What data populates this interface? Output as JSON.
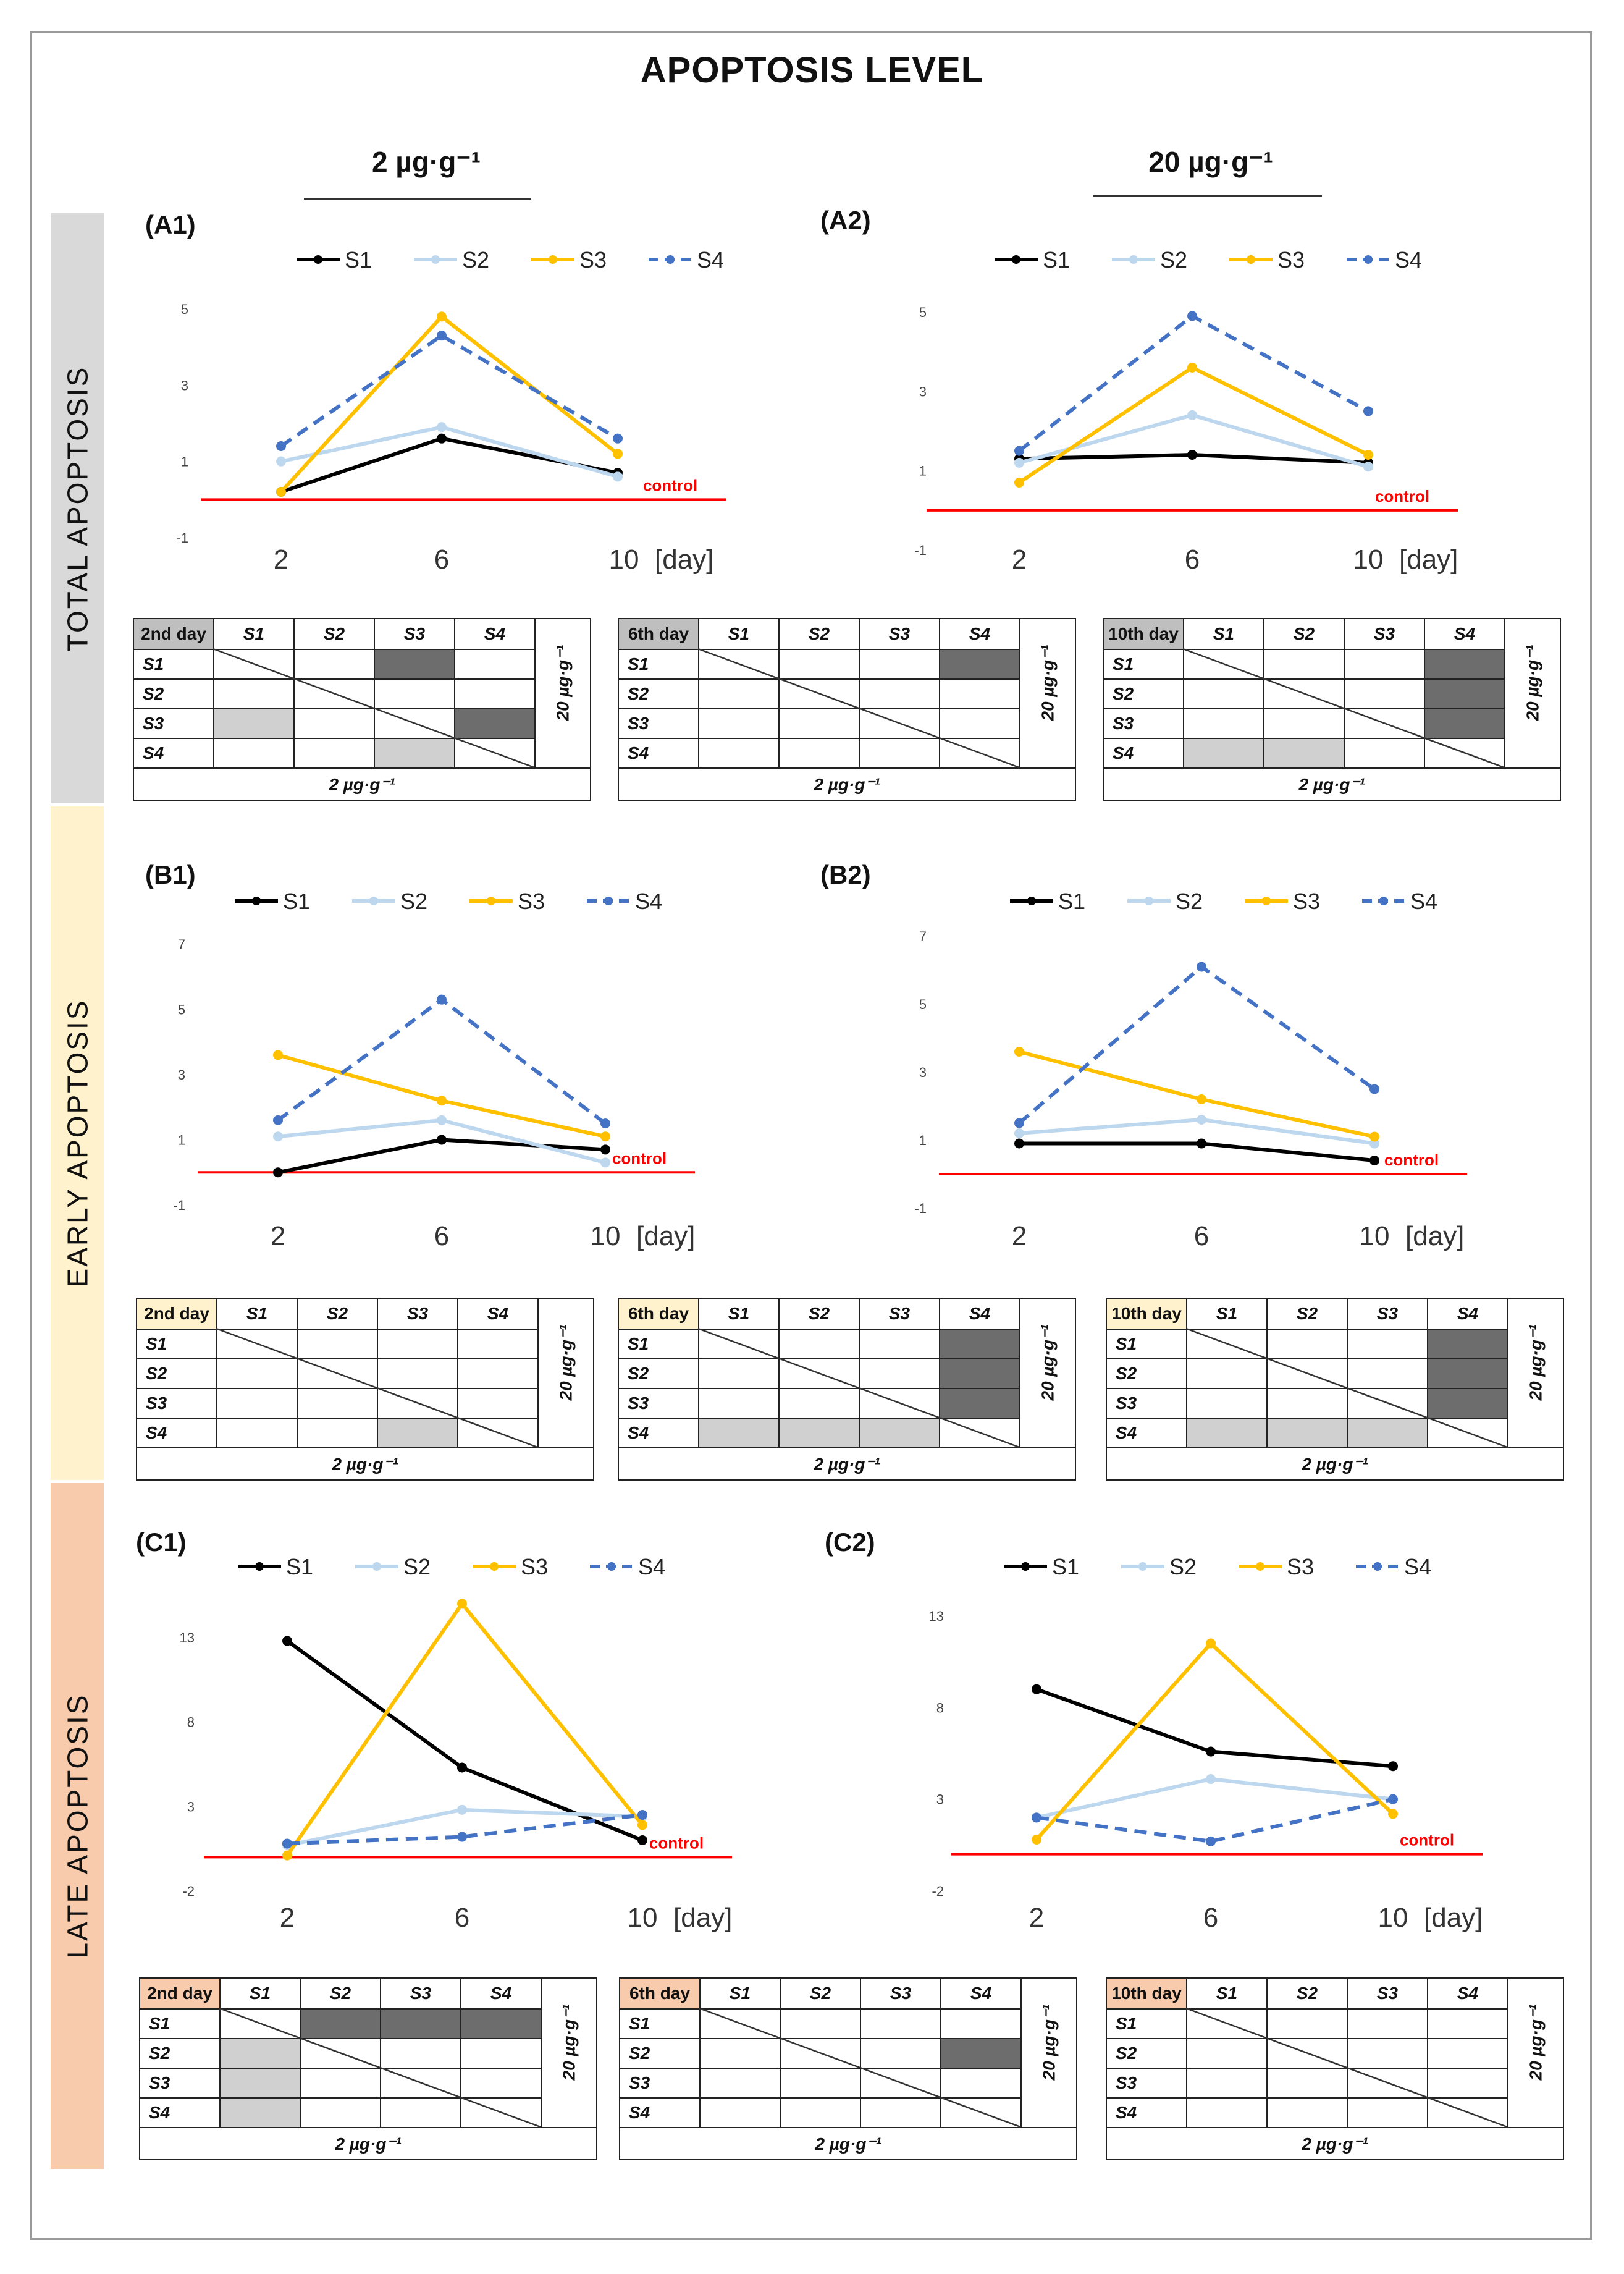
{
  "title": "APOPTOSIS LEVEL",
  "dose_headers": [
    "2 µg·g⁻¹",
    "20 µg·g⁻¹"
  ],
  "sections": [
    {
      "label": "TOTAL APOPTOSIS",
      "color": "#d9d9d9",
      "day_color": "#bfbfbf"
    },
    {
      "label": "EARLY  APOPTOSIS",
      "color": "#fff2cc",
      "day_color": "#fff2cc"
    },
    {
      "label": "LATE  APOPTOSIS",
      "color": "#f8cbad",
      "day_color": "#f8cbad"
    }
  ],
  "legend": [
    "S1",
    "S2",
    "S3",
    "S4"
  ],
  "control_label": "control",
  "x_unit": "[day]",
  "series_colors": [
    "#000000",
    "#bdd7ee",
    "#ffc000",
    "#4472c4"
  ],
  "chart_data": [
    {
      "id": "A1",
      "label": "(A1)",
      "type": "line",
      "categories": [
        "2",
        "6",
        "10"
      ],
      "ylim": [
        -1,
        5
      ],
      "yticks": [
        "5",
        "3",
        "1",
        "-1"
      ],
      "series": [
        {
          "name": "S1",
          "values": [
            0.2,
            1.6,
            0.7
          ]
        },
        {
          "name": "S2",
          "values": [
            1.0,
            1.9,
            0.6
          ]
        },
        {
          "name": "S3",
          "values": [
            0.2,
            4.8,
            1.2
          ]
        },
        {
          "name": "S4",
          "values": [
            1.4,
            4.3,
            1.6
          ]
        }
      ]
    },
    {
      "id": "A2",
      "label": "(A2)",
      "type": "line",
      "categories": [
        "2",
        "6",
        "10"
      ],
      "ylim": [
        -1,
        5
      ],
      "yticks": [
        "5",
        "3",
        "1",
        "-1"
      ],
      "series": [
        {
          "name": "S1",
          "values": [
            1.3,
            1.4,
            1.2
          ]
        },
        {
          "name": "S2",
          "values": [
            1.2,
            2.4,
            1.1
          ]
        },
        {
          "name": "S3",
          "values": [
            0.7,
            3.6,
            1.4
          ]
        },
        {
          "name": "S4",
          "values": [
            1.5,
            4.9,
            2.5
          ]
        }
      ]
    },
    {
      "id": "B1",
      "label": "(B1)",
      "type": "line",
      "categories": [
        "2",
        "6",
        "10"
      ],
      "ylim": [
        -1,
        7
      ],
      "yticks": [
        "7",
        "5",
        "3",
        "1",
        "-1"
      ],
      "series": [
        {
          "name": "S1",
          "values": [
            0.0,
            1.0,
            0.7
          ]
        },
        {
          "name": "S2",
          "values": [
            1.1,
            1.6,
            0.3
          ]
        },
        {
          "name": "S3",
          "values": [
            3.6,
            2.2,
            1.1
          ]
        },
        {
          "name": "S4",
          "values": [
            1.6,
            5.3,
            1.5
          ]
        }
      ]
    },
    {
      "id": "B2",
      "label": "(B2)",
      "type": "line",
      "categories": [
        "2",
        "6",
        "10"
      ],
      "ylim": [
        -1,
        7
      ],
      "yticks": [
        "7",
        "5",
        "3",
        "1",
        "-1"
      ],
      "series": [
        {
          "name": "S1",
          "values": [
            0.9,
            0.9,
            0.4
          ]
        },
        {
          "name": "S2",
          "values": [
            1.2,
            1.6,
            0.9
          ]
        },
        {
          "name": "S3",
          "values": [
            3.6,
            2.2,
            1.1
          ]
        },
        {
          "name": "S4",
          "values": [
            1.5,
            6.1,
            2.5
          ]
        }
      ]
    },
    {
      "id": "C1",
      "label": "(C1)",
      "type": "line",
      "categories": [
        "2",
        "6",
        "10"
      ],
      "ylim": [
        -2,
        13
      ],
      "yticks": [
        "13",
        "8",
        "3",
        "-2"
      ],
      "series": [
        {
          "name": "S1",
          "values": [
            12.8,
            5.3,
            1.0
          ]
        },
        {
          "name": "S2",
          "values": [
            0.7,
            2.8,
            2.4
          ]
        },
        {
          "name": "S3",
          "values": [
            0.1,
            15.0,
            1.9
          ]
        },
        {
          "name": "S4",
          "values": [
            0.8,
            1.2,
            2.5
          ]
        }
      ]
    },
    {
      "id": "C2",
      "label": "(C2)",
      "type": "line",
      "categories": [
        "2",
        "6",
        "10"
      ],
      "ylim": [
        -2,
        13
      ],
      "yticks": [
        "13",
        "8",
        "3",
        "-2"
      ],
      "series": [
        {
          "name": "S1",
          "values": [
            9.0,
            5.6,
            4.8
          ]
        },
        {
          "name": "S2",
          "values": [
            2.0,
            4.1,
            3.0
          ]
        },
        {
          "name": "S3",
          "values": [
            0.8,
            11.5,
            2.2
          ]
        },
        {
          "name": "S4",
          "values": [
            2.0,
            0.7,
            3.0
          ]
        }
      ]
    }
  ],
  "tables": [
    {
      "day": "2nd day",
      "dark": [
        [
          0,
          2
        ],
        [
          2,
          3
        ]
      ],
      "light": [
        [
          2,
          0
        ],
        [
          3,
          2
        ]
      ]
    },
    {
      "day": "6th day",
      "dark": [
        [
          0,
          3
        ]
      ],
      "light": []
    },
    {
      "day": "10th day",
      "dark": [
        [
          0,
          3
        ],
        [
          1,
          3
        ],
        [
          2,
          3
        ]
      ],
      "light": [
        [
          3,
          0
        ],
        [
          3,
          1
        ]
      ]
    },
    {
      "day": "2nd day",
      "dark": [],
      "light": [
        [
          3,
          2
        ]
      ]
    },
    {
      "day": "6th day",
      "dark": [
        [
          0,
          3
        ],
        [
          1,
          3
        ],
        [
          2,
          3
        ]
      ],
      "light": [
        [
          3,
          0
        ],
        [
          3,
          1
        ],
        [
          3,
          2
        ]
      ]
    },
    {
      "day": "10th day",
      "dark": [
        [
          0,
          3
        ],
        [
          1,
          3
        ],
        [
          2,
          3
        ]
      ],
      "light": [
        [
          3,
          0
        ],
        [
          3,
          1
        ],
        [
          3,
          2
        ]
      ]
    },
    {
      "day": "2nd day",
      "dark": [
        [
          0,
          1
        ],
        [
          0,
          2
        ],
        [
          0,
          3
        ]
      ],
      "light": [
        [
          1,
          0
        ],
        [
          2,
          0
        ],
        [
          3,
          0
        ]
      ]
    },
    {
      "day": "6th day",
      "dark": [
        [
          1,
          3
        ]
      ],
      "light": []
    },
    {
      "day": "10th day",
      "dark": [],
      "light": []
    }
  ],
  "table_headers": [
    "S1",
    "S2",
    "S3",
    "S4"
  ],
  "table_footer": "2 µg·g⁻¹",
  "table_side": "20 µg·g⁻¹"
}
